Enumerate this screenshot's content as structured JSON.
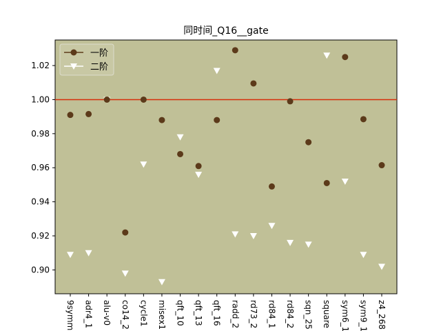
{
  "chart_data": {
    "type": "scatter",
    "title": "同时间_Q16__gate",
    "xlabel": "",
    "ylabel": "",
    "categories": [
      "9symml",
      "adr4_1",
      "alu-v0",
      "co14_2",
      "cycle1",
      "misex1",
      "qft_10",
      "qft_13",
      "qft_16",
      "radd_2",
      "rd73_2",
      "rd84_1",
      "rd84_2",
      "sqn_25",
      "square",
      "sym6_1",
      "sym9_1",
      "z4_268"
    ],
    "ylim": [
      0.886,
      1.035
    ],
    "yticks": [
      "0.90",
      "0.92",
      "0.94",
      "0.96",
      "0.98",
      "1.00",
      "1.02"
    ],
    "reference_line": {
      "y": 1.0,
      "color": "#d62d0a"
    },
    "background_color": "#c0c097",
    "grid": false,
    "legend_position": "top-left",
    "series": [
      {
        "name": "一阶",
        "marker": "circle",
        "color": "#5c3a1a",
        "values": [
          0.991,
          0.9915,
          1.0,
          0.922,
          1.0,
          0.988,
          0.968,
          0.961,
          0.988,
          1.029,
          1.0095,
          0.949,
          0.999,
          0.975,
          0.951,
          1.025,
          0.9885,
          0.9615
        ]
      },
      {
        "name": "二阶",
        "marker": "triangle-down",
        "color": "#ffffff",
        "values": [
          0.909,
          0.91,
          1.0,
          0.898,
          0.962,
          0.893,
          0.978,
          0.956,
          1.017,
          0.921,
          0.92,
          0.926,
          0.916,
          0.915,
          1.026,
          0.952,
          0.909,
          0.902
        ]
      }
    ]
  }
}
